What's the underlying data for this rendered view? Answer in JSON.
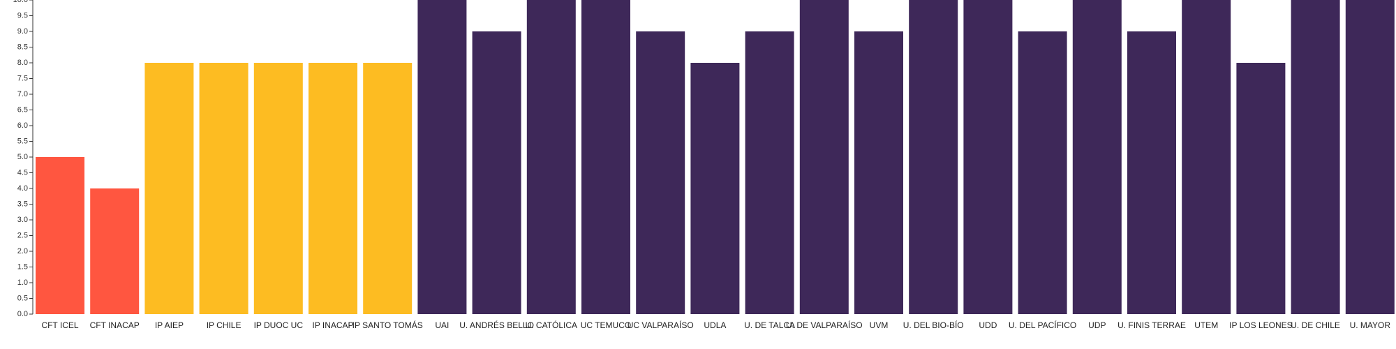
{
  "chart_data": {
    "type": "bar",
    "title": "",
    "xlabel": "",
    "ylabel": "",
    "ylim": [
      0,
      10
    ],
    "y_tick_step": 0.5,
    "grid": false,
    "legend": "none",
    "categories": [
      "CFT ICEL",
      "CFT INACAP",
      "IP AIEP",
      "IP CHILE",
      "IP DUOC UC",
      "IP INACAP",
      "IP SANTO TOMÁS",
      "UAI",
      "U. ANDRÉS BELLO",
      "U. CATÓLICA",
      "UC TEMUCO",
      "UC VALPARAÍSO",
      "UDLA",
      "U. DE TALCA",
      "U. DE VALPARAÍSO",
      "UVM",
      "U. DEL BIO-BÍO",
      "UDD",
      "U. DEL PACÍFICO",
      "UDP",
      "U. FINIS TERRAE",
      "UTEM",
      "IP LOS LEONES",
      "U. DE CHILE",
      "U. MAYOR"
    ],
    "values": [
      5,
      4,
      8,
      8,
      8,
      8,
      8,
      10,
      9,
      10,
      10,
      9,
      8,
      9,
      10,
      9,
      10,
      10,
      9,
      10,
      9,
      10,
      8,
      10,
      10
    ],
    "bar_colors": [
      "#ff5640",
      "#ff5640",
      "#fdbc22",
      "#fdbc22",
      "#fdbc22",
      "#fdbc22",
      "#fdbc22",
      "#3e2859",
      "#3e2859",
      "#3e2859",
      "#3e2859",
      "#3e2859",
      "#3e2859",
      "#3e2859",
      "#3e2859",
      "#3e2859",
      "#3e2859",
      "#3e2859",
      "#3e2859",
      "#3e2859",
      "#3e2859",
      "#3e2859",
      "#3e2859",
      "#3e2859",
      "#3e2859"
    ]
  }
}
